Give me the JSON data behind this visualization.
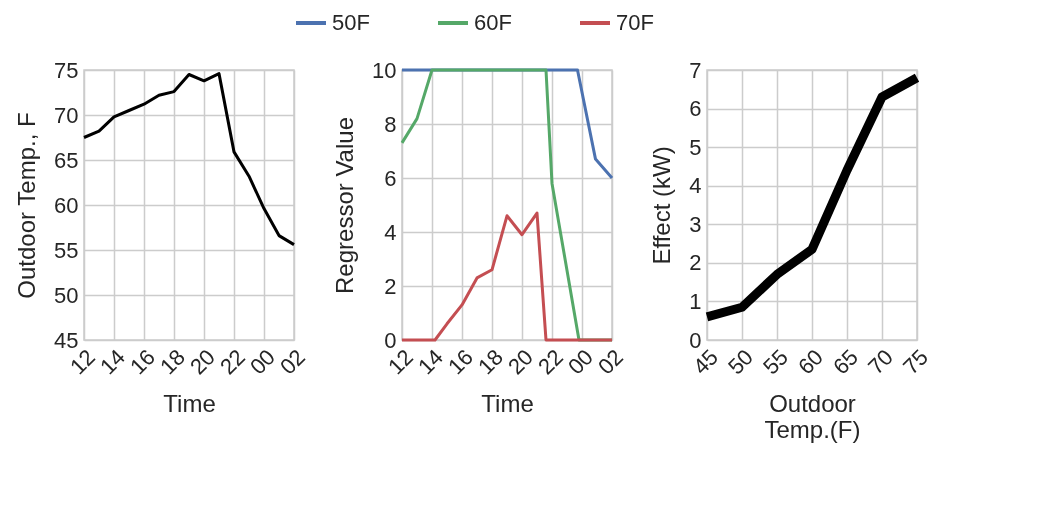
{
  "chart_data": [
    {
      "type": "line",
      "xlabel": "Time",
      "ylabel": "Outdoor Temp., F",
      "x": [
        "2000-01-01T12:00",
        "2000-01-01T13:00",
        "2000-01-01T14:00",
        "2000-01-01T15:00",
        "2000-01-01T16:00",
        "2000-01-01T17:00",
        "2000-01-01T18:00",
        "2000-01-01T19:00",
        "2000-01-01T20:00",
        "2000-01-01T21:00",
        "2000-01-01T22:00",
        "2000-01-01T23:00",
        "2000-01-02T00:00",
        "2000-01-02T01:00",
        "2000-01-02T02:00"
      ],
      "values": [
        67.5,
        68.2,
        69.8,
        70.5,
        71.2,
        72.2,
        72.6,
        74.5,
        73.8,
        74.6,
        65.9,
        63.2,
        59.6,
        56.6,
        55.6
      ],
      "color": "#000000",
      "xlim": [
        "2000-01-01T12:00",
        "2000-01-02T02:00"
      ],
      "xticks": [
        {
          "value": "2000-01-01T12:00",
          "label": "12"
        },
        {
          "value": "2000-01-01T14:00",
          "label": "14"
        },
        {
          "value": "2000-01-01T16:00",
          "label": "16"
        },
        {
          "value": "2000-01-01T18:00",
          "label": "18"
        },
        {
          "value": "2000-01-01T20:00",
          "label": "20"
        },
        {
          "value": "2000-01-01T22:00",
          "label": "22"
        },
        {
          "value": "2000-01-02T00:00",
          "label": "00"
        },
        {
          "value": "2000-01-02T02:00",
          "label": "02"
        }
      ],
      "ylim": [
        45,
        75
      ],
      "yticks": [
        45,
        50,
        55,
        60,
        65,
        70,
        75
      ],
      "grid": true
    },
    {
      "type": "line",
      "xlabel": "Time",
      "ylabel": "Regressor Value",
      "series": [
        {
          "name": "50F",
          "color": "#4c72b0",
          "x": [
            "2000-01-01T12:00",
            "2000-01-01T23:42",
            "2000-01-02T00:54",
            "2000-01-02T02:00"
          ],
          "values": [
            10,
            10,
            6.7,
            6.0
          ]
        },
        {
          "name": "60F",
          "color": "#55a868",
          "x": [
            "2000-01-01T12:00",
            "2000-01-01T13:00",
            "2000-01-01T14:00",
            "2000-01-01T21:36",
            "2000-01-01T22:00",
            "2000-01-01T23:48",
            "2000-01-02T02:00"
          ],
          "values": [
            7.3,
            8.2,
            10,
            10,
            5.8,
            0,
            0
          ]
        },
        {
          "name": "70F",
          "color": "#c44e52",
          "x": [
            "2000-01-01T12:00",
            "2000-01-01T14:12",
            "2000-01-01T15:00",
            "2000-01-01T16:00",
            "2000-01-01T17:00",
            "2000-01-01T18:00",
            "2000-01-01T19:00",
            "2000-01-01T20:00",
            "2000-01-01T21:00",
            "2000-01-01T21:36",
            "2000-01-02T02:00"
          ],
          "values": [
            0,
            0,
            0.6,
            1.3,
            2.3,
            2.6,
            4.6,
            3.9,
            4.7,
            0,
            0
          ]
        }
      ],
      "xlim": [
        "2000-01-01T12:00",
        "2000-01-02T02:00"
      ],
      "xticks": [
        {
          "value": "2000-01-01T12:00",
          "label": "12"
        },
        {
          "value": "2000-01-01T14:00",
          "label": "14"
        },
        {
          "value": "2000-01-01T16:00",
          "label": "16"
        },
        {
          "value": "2000-01-01T18:00",
          "label": "18"
        },
        {
          "value": "2000-01-01T20:00",
          "label": "20"
        },
        {
          "value": "2000-01-01T22:00",
          "label": "22"
        },
        {
          "value": "2000-01-02T00:00",
          "label": "00"
        },
        {
          "value": "2000-01-02T02:00",
          "label": "02"
        }
      ],
      "ylim": [
        0,
        10
      ],
      "yticks": [
        0,
        2,
        4,
        6,
        8,
        10
      ],
      "grid": true,
      "legend": "top"
    },
    {
      "type": "line",
      "xlabel": "Outdoor Temp.(F)",
      "ylabel": "Effect (kW)",
      "x": [
        45,
        50,
        55,
        60,
        65,
        70,
        75
      ],
      "values": [
        0.6,
        0.85,
        1.7,
        2.35,
        4.4,
        6.3,
        6.8
      ],
      "color": "#000000",
      "xlim": [
        45,
        75
      ],
      "xticks": [
        45,
        50,
        55,
        60,
        65,
        70,
        75
      ],
      "ylim": [
        0,
        7
      ],
      "yticks": [
        0,
        1,
        2,
        3,
        4,
        5,
        6,
        7
      ],
      "grid": true
    }
  ]
}
